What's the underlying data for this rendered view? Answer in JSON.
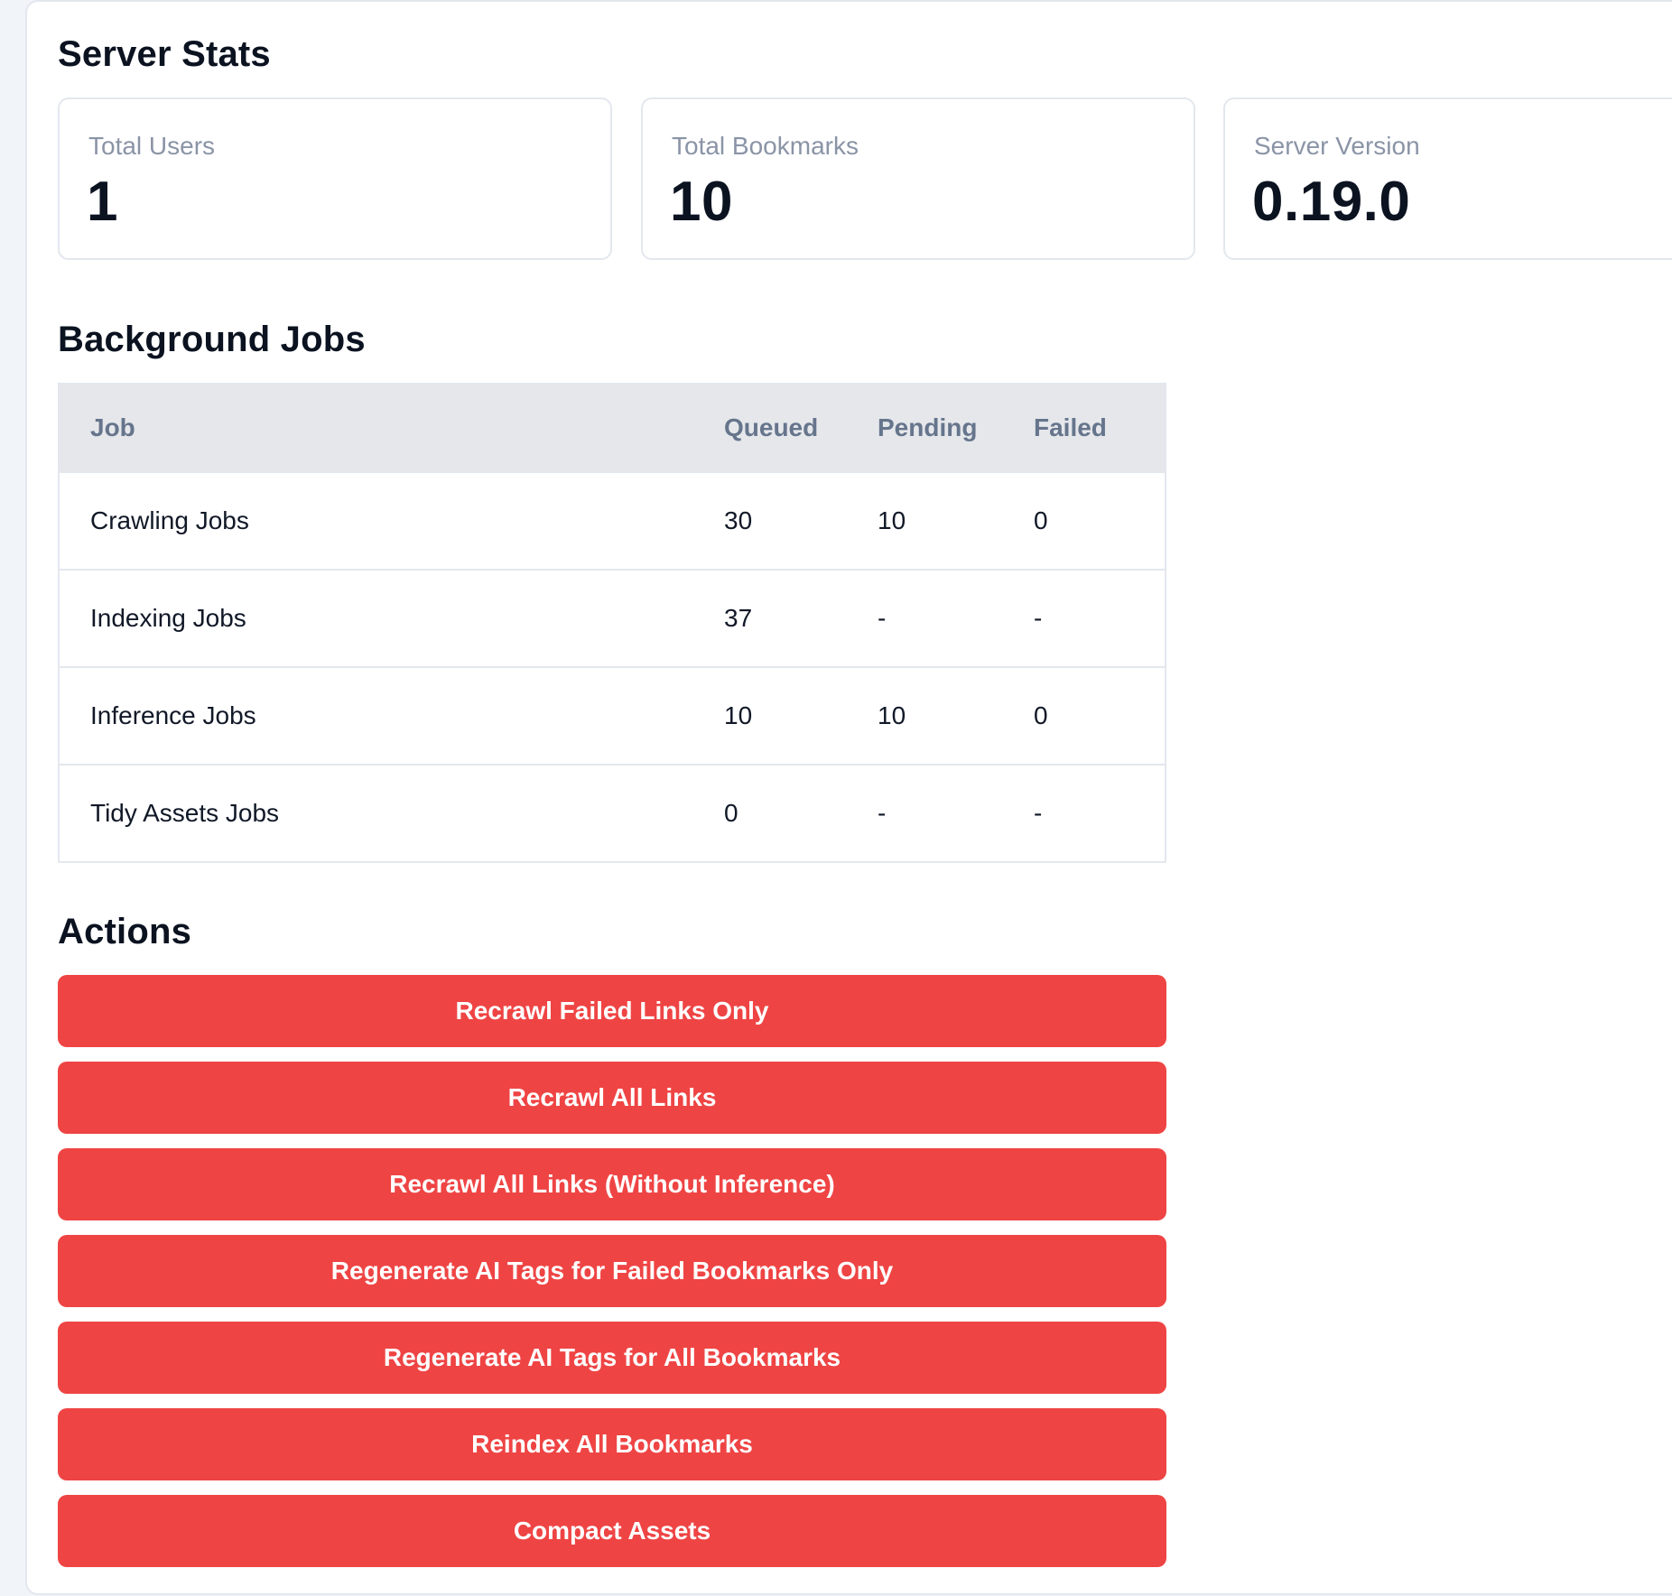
{
  "server_stats": {
    "title": "Server Stats",
    "cards": [
      {
        "label": "Total Users",
        "value": "1"
      },
      {
        "label": "Total Bookmarks",
        "value": "10"
      },
      {
        "label": "Server Version",
        "value": "0.19.0"
      }
    ]
  },
  "background_jobs": {
    "title": "Background Jobs",
    "columns": [
      "Job",
      "Queued",
      "Pending",
      "Failed"
    ],
    "rows": [
      {
        "job": "Crawling Jobs",
        "queued": "30",
        "pending": "10",
        "failed": "0"
      },
      {
        "job": "Indexing Jobs",
        "queued": "37",
        "pending": "-",
        "failed": "-"
      },
      {
        "job": "Inference Jobs",
        "queued": "10",
        "pending": "10",
        "failed": "0"
      },
      {
        "job": "Tidy Assets Jobs",
        "queued": "0",
        "pending": "-",
        "failed": "-"
      }
    ]
  },
  "actions": {
    "title": "Actions",
    "buttons": [
      "Recrawl Failed Links Only",
      "Recrawl All Links",
      "Recrawl All Links (Without Inference)",
      "Regenerate AI Tags for Failed Bookmarks Only",
      "Regenerate AI Tags for All Bookmarks",
      "Reindex All Bookmarks",
      "Compact Assets"
    ]
  },
  "colors": {
    "action_button": "#ef4444",
    "table_header_bg": "#e5e7eb",
    "page_bg": "#f1f4f8",
    "muted_text": "#8a94a6"
  }
}
